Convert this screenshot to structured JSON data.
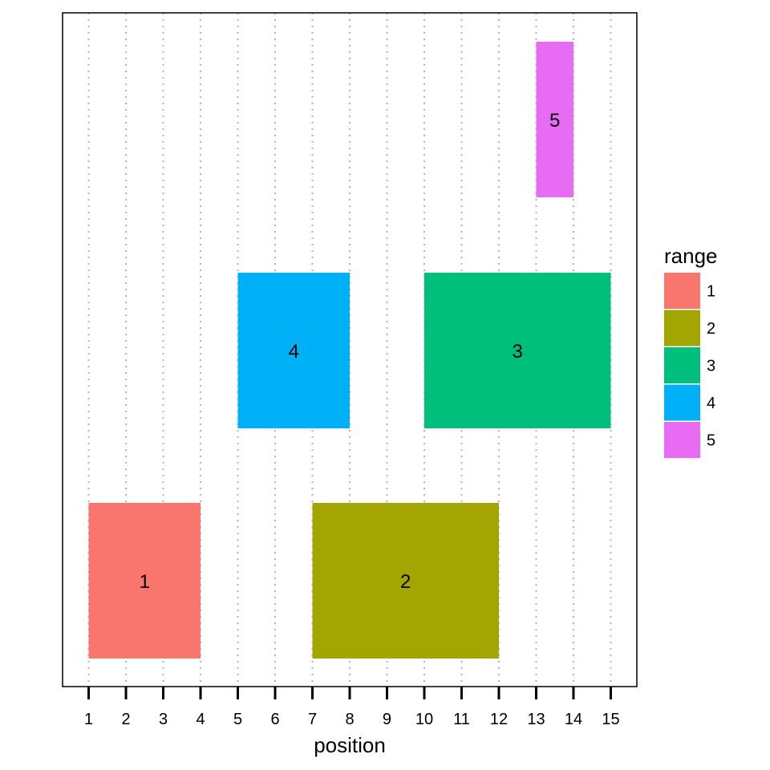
{
  "chart_data": {
    "type": "rect",
    "xlabel": "position",
    "xlim": [
      0.3,
      15.7
    ],
    "xticks": [
      1,
      2,
      3,
      4,
      5,
      6,
      7,
      8,
      9,
      10,
      11,
      12,
      13,
      14,
      15
    ],
    "grid": "vertical dotted",
    "legend": {
      "title": "range",
      "position": "right"
    },
    "ranges": [
      {
        "label": "1",
        "xmin": 1,
        "xmax": 4,
        "row": 1,
        "color": "#F8766D"
      },
      {
        "label": "2",
        "xmin": 7,
        "xmax": 12,
        "row": 1,
        "color": "#A3A500"
      },
      {
        "label": "3",
        "xmin": 10,
        "xmax": 15,
        "row": 2,
        "color": "#00BF7D"
      },
      {
        "label": "4",
        "xmin": 5,
        "xmax": 8,
        "row": 2,
        "color": "#00B0F6"
      },
      {
        "label": "5",
        "xmin": 13,
        "xmax": 14,
        "row": 3,
        "color": "#E76BF3"
      }
    ]
  }
}
